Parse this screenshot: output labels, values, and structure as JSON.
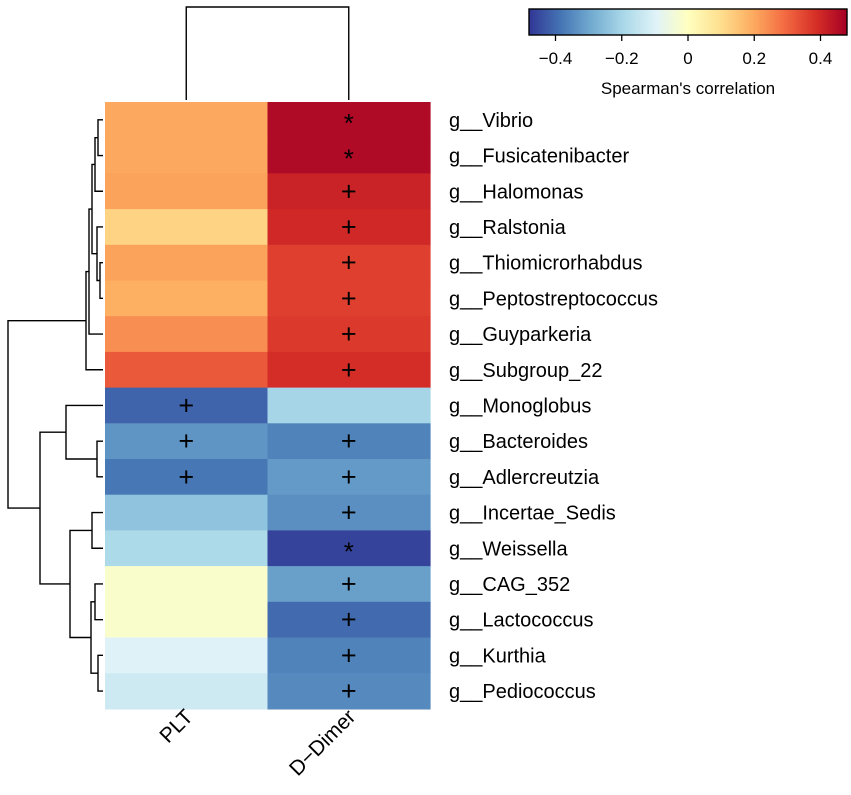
{
  "chart_data": {
    "type": "heatmap",
    "title": "",
    "columns": [
      "PLT",
      "D−Dimer"
    ],
    "rows": [
      "g__Vibrio",
      "g__Fusicatenibacter",
      "g__Halomonas",
      "g__Ralstonia",
      "g__Thiomicrorhabdus",
      "g__Peptostreptococcus",
      "g__Guyparkeria",
      "g__Subgroup_22",
      "g__Monoglobus",
      "g__Bacteroides",
      "g__Adlercreutzia",
      "g__Incertae_Sedis",
      "g__Weissella",
      "g__CAG_352",
      "g__Lactococcus",
      "g__Kurthia",
      "g__Pediococcus"
    ],
    "values": [
      [
        0.2,
        0.46
      ],
      [
        0.2,
        0.46
      ],
      [
        0.21,
        0.41
      ],
      [
        0.12,
        0.4
      ],
      [
        0.21,
        0.36
      ],
      [
        0.19,
        0.36
      ],
      [
        0.24,
        0.37
      ],
      [
        0.32,
        0.39
      ],
      [
        -0.41,
        -0.2
      ],
      [
        -0.33,
        -0.36
      ],
      [
        -0.38,
        -0.32
      ],
      [
        -0.24,
        -0.34
      ],
      [
        -0.19,
        -0.46
      ],
      [
        -0.02,
        -0.31
      ],
      [
        -0.02,
        -0.4
      ],
      [
        -0.1,
        -0.36
      ],
      [
        -0.13,
        -0.35
      ]
    ],
    "significance": [
      [
        "",
        "*"
      ],
      [
        "",
        "*"
      ],
      [
        "",
        "+"
      ],
      [
        "",
        "+"
      ],
      [
        "",
        "+"
      ],
      [
        "",
        "+"
      ],
      [
        "",
        "+"
      ],
      [
        "",
        "+"
      ],
      [
        "+",
        ""
      ],
      [
        "+",
        "+"
      ],
      [
        "+",
        "+"
      ],
      [
        "",
        "+"
      ],
      [
        "",
        "*"
      ],
      [
        "",
        "+"
      ],
      [
        "",
        "+"
      ],
      [
        "",
        "+"
      ],
      [
        "",
        "+"
      ]
    ],
    "colorbar": {
      "label": "Spearman's correlation",
      "range": [
        -0.48,
        0.48
      ],
      "ticks": [
        -0.4,
        -0.2,
        0,
        0.2,
        0.4
      ],
      "tick_labels": [
        "−0.4",
        "−0.2",
        "0",
        "0.2",
        "0.4"
      ],
      "palette": [
        "#313695",
        "#4575b4",
        "#74add1",
        "#abd9e9",
        "#e0f3f8",
        "#ffffbf",
        "#fee090",
        "#fdae61",
        "#f46d43",
        "#d73027",
        "#a50026"
      ],
      "position": "top-right"
    },
    "row_dendrogram": {
      "groups": [
        [
          "g__Vibrio",
          "g__Fusicatenibacter",
          "g__Halomonas",
          "g__Ralstonia",
          "g__Thiomicrorhabdus",
          "g__Peptostreptococcus",
          "g__Guyparkeria",
          "g__Subgroup_22"
        ],
        [
          "g__Monoglobus",
          "g__Bacteroides",
          "g__Adlercreutzia",
          "g__Incertae_Sedis",
          "g__Weissella",
          "g__CAG_352",
          "g__Lactococcus",
          "g__Kurthia",
          "g__Pediococcus"
        ]
      ]
    },
    "column_dendrogram": {
      "groups": [
        [
          "PLT",
          "D−Dimer"
        ]
      ]
    }
  }
}
